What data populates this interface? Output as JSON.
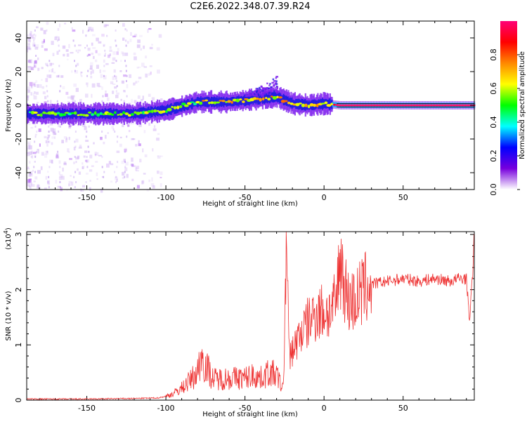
{
  "title": "C2E6.2022.348.07.39.R24",
  "chart_data": [
    {
      "type": "heatmap",
      "xlabel": "Height of straight line (km)",
      "ylabel": "Frequency (Hz)",
      "xlim": [
        -188,
        95
      ],
      "ylim": [
        -50,
        50
      ],
      "xticks": [
        -150,
        -100,
        -50,
        0,
        50
      ],
      "yticks": [
        -40,
        -20,
        0,
        20,
        40
      ],
      "ridge": {
        "x": [
          -188,
          -150,
          -120,
          -100,
          -80,
          -60,
          -40,
          -30,
          -20,
          -10,
          0,
          10,
          95
        ],
        "y": [
          -5,
          -5,
          -5,
          -3,
          2,
          2,
          4,
          5,
          1,
          0,
          1,
          0,
          0
        ]
      },
      "secondary_echo": {
        "x": [
          -50,
          -30
        ],
        "y": [
          8,
          16
        ]
      }
    },
    {
      "type": "colorbar",
      "label": "Normalized spectral amplitude",
      "range": [
        0,
        1
      ],
      "ticks": [
        "0.0",
        "0.2",
        "0.4",
        "0.6",
        "0.8"
      ],
      "colors": [
        "#ffffff",
        "#7700dd",
        "#0000ff",
        "#00ffff",
        "#00ff00",
        "#ffff00",
        "#ff8800",
        "#ff0000",
        "#ff0077"
      ]
    },
    {
      "type": "line",
      "xlabel": "Height of straight line (km)",
      "ylabel": "SNR (10 * v/v)",
      "multiplier_label": "(x10",
      "multiplier_exp": "4",
      "color": "#ee3333",
      "xlim": [
        -188,
        95
      ],
      "ylim": [
        0,
        3.05
      ],
      "xticks": [
        -150,
        -100,
        -50,
        0,
        50
      ],
      "yticks": [
        0,
        1,
        2,
        3
      ],
      "series": [
        {
          "x": [
            -188,
            -150,
            -120,
            -105,
            -100,
            -95,
            -90,
            -85,
            -80,
            -78,
            -70,
            -60,
            -50,
            -45,
            -40,
            -35,
            -30,
            -26,
            -25,
            -24,
            -22,
            -20,
            -15,
            -10,
            -5,
            0,
            5,
            8,
            10,
            15,
            20,
            25,
            30,
            40,
            50,
            60,
            70,
            80,
            85,
            90,
            92,
            94,
            95
          ],
          "y": [
            0.02,
            0.02,
            0.03,
            0.04,
            0.07,
            0.12,
            0.22,
            0.35,
            0.5,
            0.8,
            0.38,
            0.4,
            0.4,
            0.45,
            0.4,
            0.5,
            0.45,
            0.2,
            0.9,
            3.0,
            0.8,
            0.9,
            1.2,
            1.4,
            1.6,
            1.6,
            1.6,
            1.8,
            2.6,
            1.8,
            1.8,
            2.0,
            2.1,
            2.15,
            2.2,
            2.15,
            2.2,
            2.15,
            2.2,
            2.2,
            1.45,
            2.3,
            3.05
          ]
        }
      ]
    }
  ]
}
